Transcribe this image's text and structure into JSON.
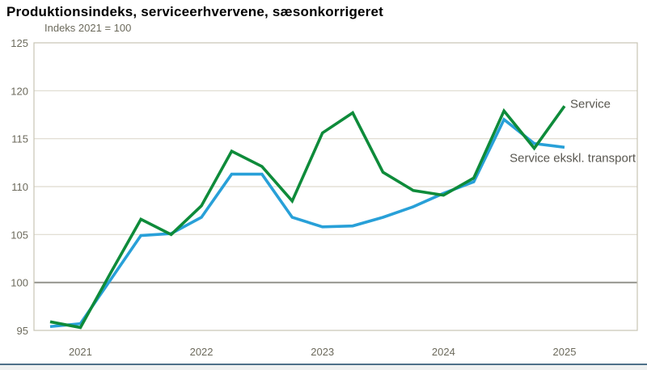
{
  "header": {
    "title": "Produktionsindeks, serviceerhvervene, sæsonkorrigeret"
  },
  "chart_data": {
    "type": "line",
    "title": "Produktionsindeks, serviceerhvervene, sæsonkorrigeret",
    "subtitle": "Indeks 2021 = 100",
    "xlabel": "",
    "ylabel": "Indeks 2021 = 100",
    "ylim": [
      95,
      125
    ],
    "y_ticks": [
      95,
      100,
      105,
      110,
      115,
      120,
      125
    ],
    "baseline": 100,
    "grid": "horizontal",
    "legend_position": "inline-end-labels",
    "x_tick_labels": [
      "2021",
      "2022",
      "2023",
      "2024",
      "2025"
    ],
    "x_quarters": [
      "2020Q4",
      "2021Q1",
      "2021Q2",
      "2021Q3",
      "2021Q4",
      "2022Q1",
      "2022Q2",
      "2022Q3",
      "2022Q4",
      "2023Q1",
      "2023Q2",
      "2023Q3",
      "2023Q4",
      "2024Q1",
      "2024Q2",
      "2024Q3",
      "2024Q4",
      "2025Q1"
    ],
    "series": [
      {
        "name": "Service",
        "color": "#0e8b3a",
        "values": [
          95.9,
          95.3,
          101.0,
          106.6,
          105.0,
          108.0,
          113.7,
          112.1,
          108.5,
          115.6,
          117.7,
          111.5,
          109.6,
          109.1,
          110.9,
          117.9,
          114.0,
          118.4
        ]
      },
      {
        "name": "Service ekskl. transport",
        "color": "#28a0d8",
        "values": [
          95.4,
          95.7,
          100.3,
          104.9,
          105.1,
          106.8,
          111.3,
          111.3,
          106.8,
          105.8,
          105.9,
          106.8,
          107.9,
          109.3,
          110.5,
          117.0,
          114.5,
          114.1
        ]
      }
    ]
  },
  "colors": {
    "grid": "#dedace",
    "border": "#c8c4b4",
    "baseline": "#8c8c85",
    "tick_text": "#6c6a5c",
    "series_label_text": "#595750",
    "footer_line": "#4e7189",
    "footer_band": "#eff1f1"
  },
  "footer": {
    "divider": ""
  }
}
